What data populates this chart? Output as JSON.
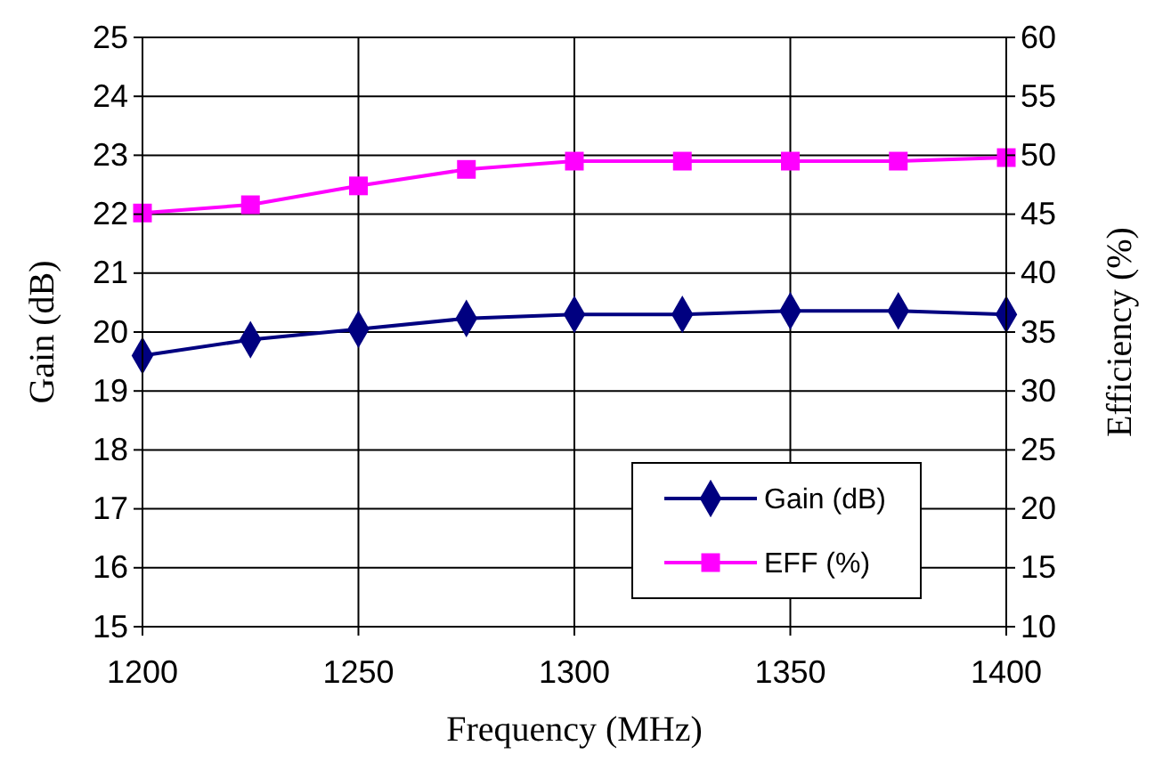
{
  "chart_data": {
    "type": "line",
    "xlabel": "Frequency (MHz)",
    "ylabel": "Gain (dB)",
    "y2label": "Efficiency (%)",
    "x": [
      1200,
      1225,
      1250,
      1275,
      1300,
      1325,
      1350,
      1375,
      1400
    ],
    "series": [
      {
        "name": "Gain (dB)",
        "color": "#000080",
        "marker": "diamond",
        "values": [
          19.6,
          19.87,
          20.05,
          20.23,
          20.3,
          20.3,
          20.36,
          20.36,
          20.3
        ]
      },
      {
        "name": "EFF (%)",
        "color": "#ff00ff",
        "marker": "square",
        "axis": "y2",
        "values": [
          45.1,
          45.8,
          47.4,
          48.8,
          49.5,
          49.5,
          49.5,
          49.5,
          49.8
        ]
      }
    ],
    "xlim": [
      1200,
      1400
    ],
    "xticks": [
      1200,
      1250,
      1300,
      1350,
      1400
    ],
    "ylim": [
      15,
      25
    ],
    "yticks": [
      15,
      16,
      17,
      18,
      19,
      20,
      21,
      22,
      23,
      24,
      25
    ],
    "y2lim": [
      10,
      60
    ],
    "y2ticks": [
      10,
      15,
      20,
      25,
      30,
      35,
      40,
      45,
      50,
      55,
      60
    ],
    "grid": true,
    "legend": "bottom right",
    "line_style": "solid"
  }
}
